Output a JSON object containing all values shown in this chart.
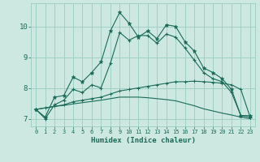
{
  "title": "",
  "xlabel": "Humidex (Indice chaleur)",
  "bg_color": "#cce8e0",
  "grid_color": "#99ccc0",
  "line_color": "#1a6b5a",
  "xlim": [
    -0.5,
    23.5
  ],
  "ylim": [
    6.75,
    10.75
  ],
  "xticks": [
    0,
    1,
    2,
    3,
    4,
    5,
    6,
    7,
    8,
    9,
    10,
    11,
    12,
    13,
    14,
    15,
    16,
    17,
    18,
    19,
    20,
    21,
    22,
    23
  ],
  "yticks": [
    7,
    8,
    9,
    10
  ],
  "series1_x": [
    0,
    1,
    2,
    3,
    4,
    5,
    6,
    7,
    8,
    9,
    10,
    11,
    12,
    13,
    14,
    15,
    16,
    17,
    18,
    19,
    20,
    21,
    22,
    23
  ],
  "series1_y": [
    7.3,
    7.05,
    7.7,
    7.75,
    8.35,
    8.2,
    8.5,
    8.85,
    9.85,
    10.45,
    10.1,
    9.65,
    9.85,
    9.6,
    10.05,
    10.0,
    9.5,
    9.2,
    8.65,
    8.5,
    8.3,
    7.95,
    7.1,
    7.1
  ],
  "series2_x": [
    0,
    1,
    2,
    3,
    4,
    5,
    6,
    7,
    8,
    9,
    10,
    11,
    12,
    13,
    14,
    15,
    16,
    17,
    18,
    19,
    20,
    21,
    22,
    23
  ],
  "series2_y": [
    7.3,
    7.0,
    7.45,
    7.6,
    7.95,
    7.85,
    8.1,
    8.0,
    8.8,
    9.8,
    9.55,
    9.7,
    9.7,
    9.45,
    9.75,
    9.65,
    9.3,
    8.9,
    8.5,
    8.3,
    8.2,
    7.85,
    7.1,
    7.05
  ],
  "series3_x": [
    0,
    1,
    2,
    3,
    4,
    5,
    6,
    7,
    8,
    9,
    10,
    11,
    12,
    13,
    14,
    15,
    16,
    17,
    18,
    19,
    20,
    21,
    22,
    23
  ],
  "series3_y": [
    7.3,
    7.35,
    7.4,
    7.45,
    7.55,
    7.6,
    7.65,
    7.7,
    7.8,
    7.9,
    7.95,
    8.0,
    8.05,
    8.1,
    8.15,
    8.2,
    8.2,
    8.22,
    8.2,
    8.18,
    8.15,
    8.1,
    7.95,
    7.05
  ],
  "series4_x": [
    0,
    1,
    2,
    3,
    4,
    5,
    6,
    7,
    8,
    9,
    10,
    11,
    12,
    13,
    14,
    15,
    16,
    17,
    18,
    19,
    20,
    21,
    22,
    23
  ],
  "series4_y": [
    7.3,
    7.35,
    7.4,
    7.43,
    7.48,
    7.52,
    7.56,
    7.6,
    7.65,
    7.7,
    7.7,
    7.7,
    7.68,
    7.65,
    7.62,
    7.58,
    7.5,
    7.42,
    7.32,
    7.25,
    7.18,
    7.12,
    7.05,
    7.0
  ]
}
